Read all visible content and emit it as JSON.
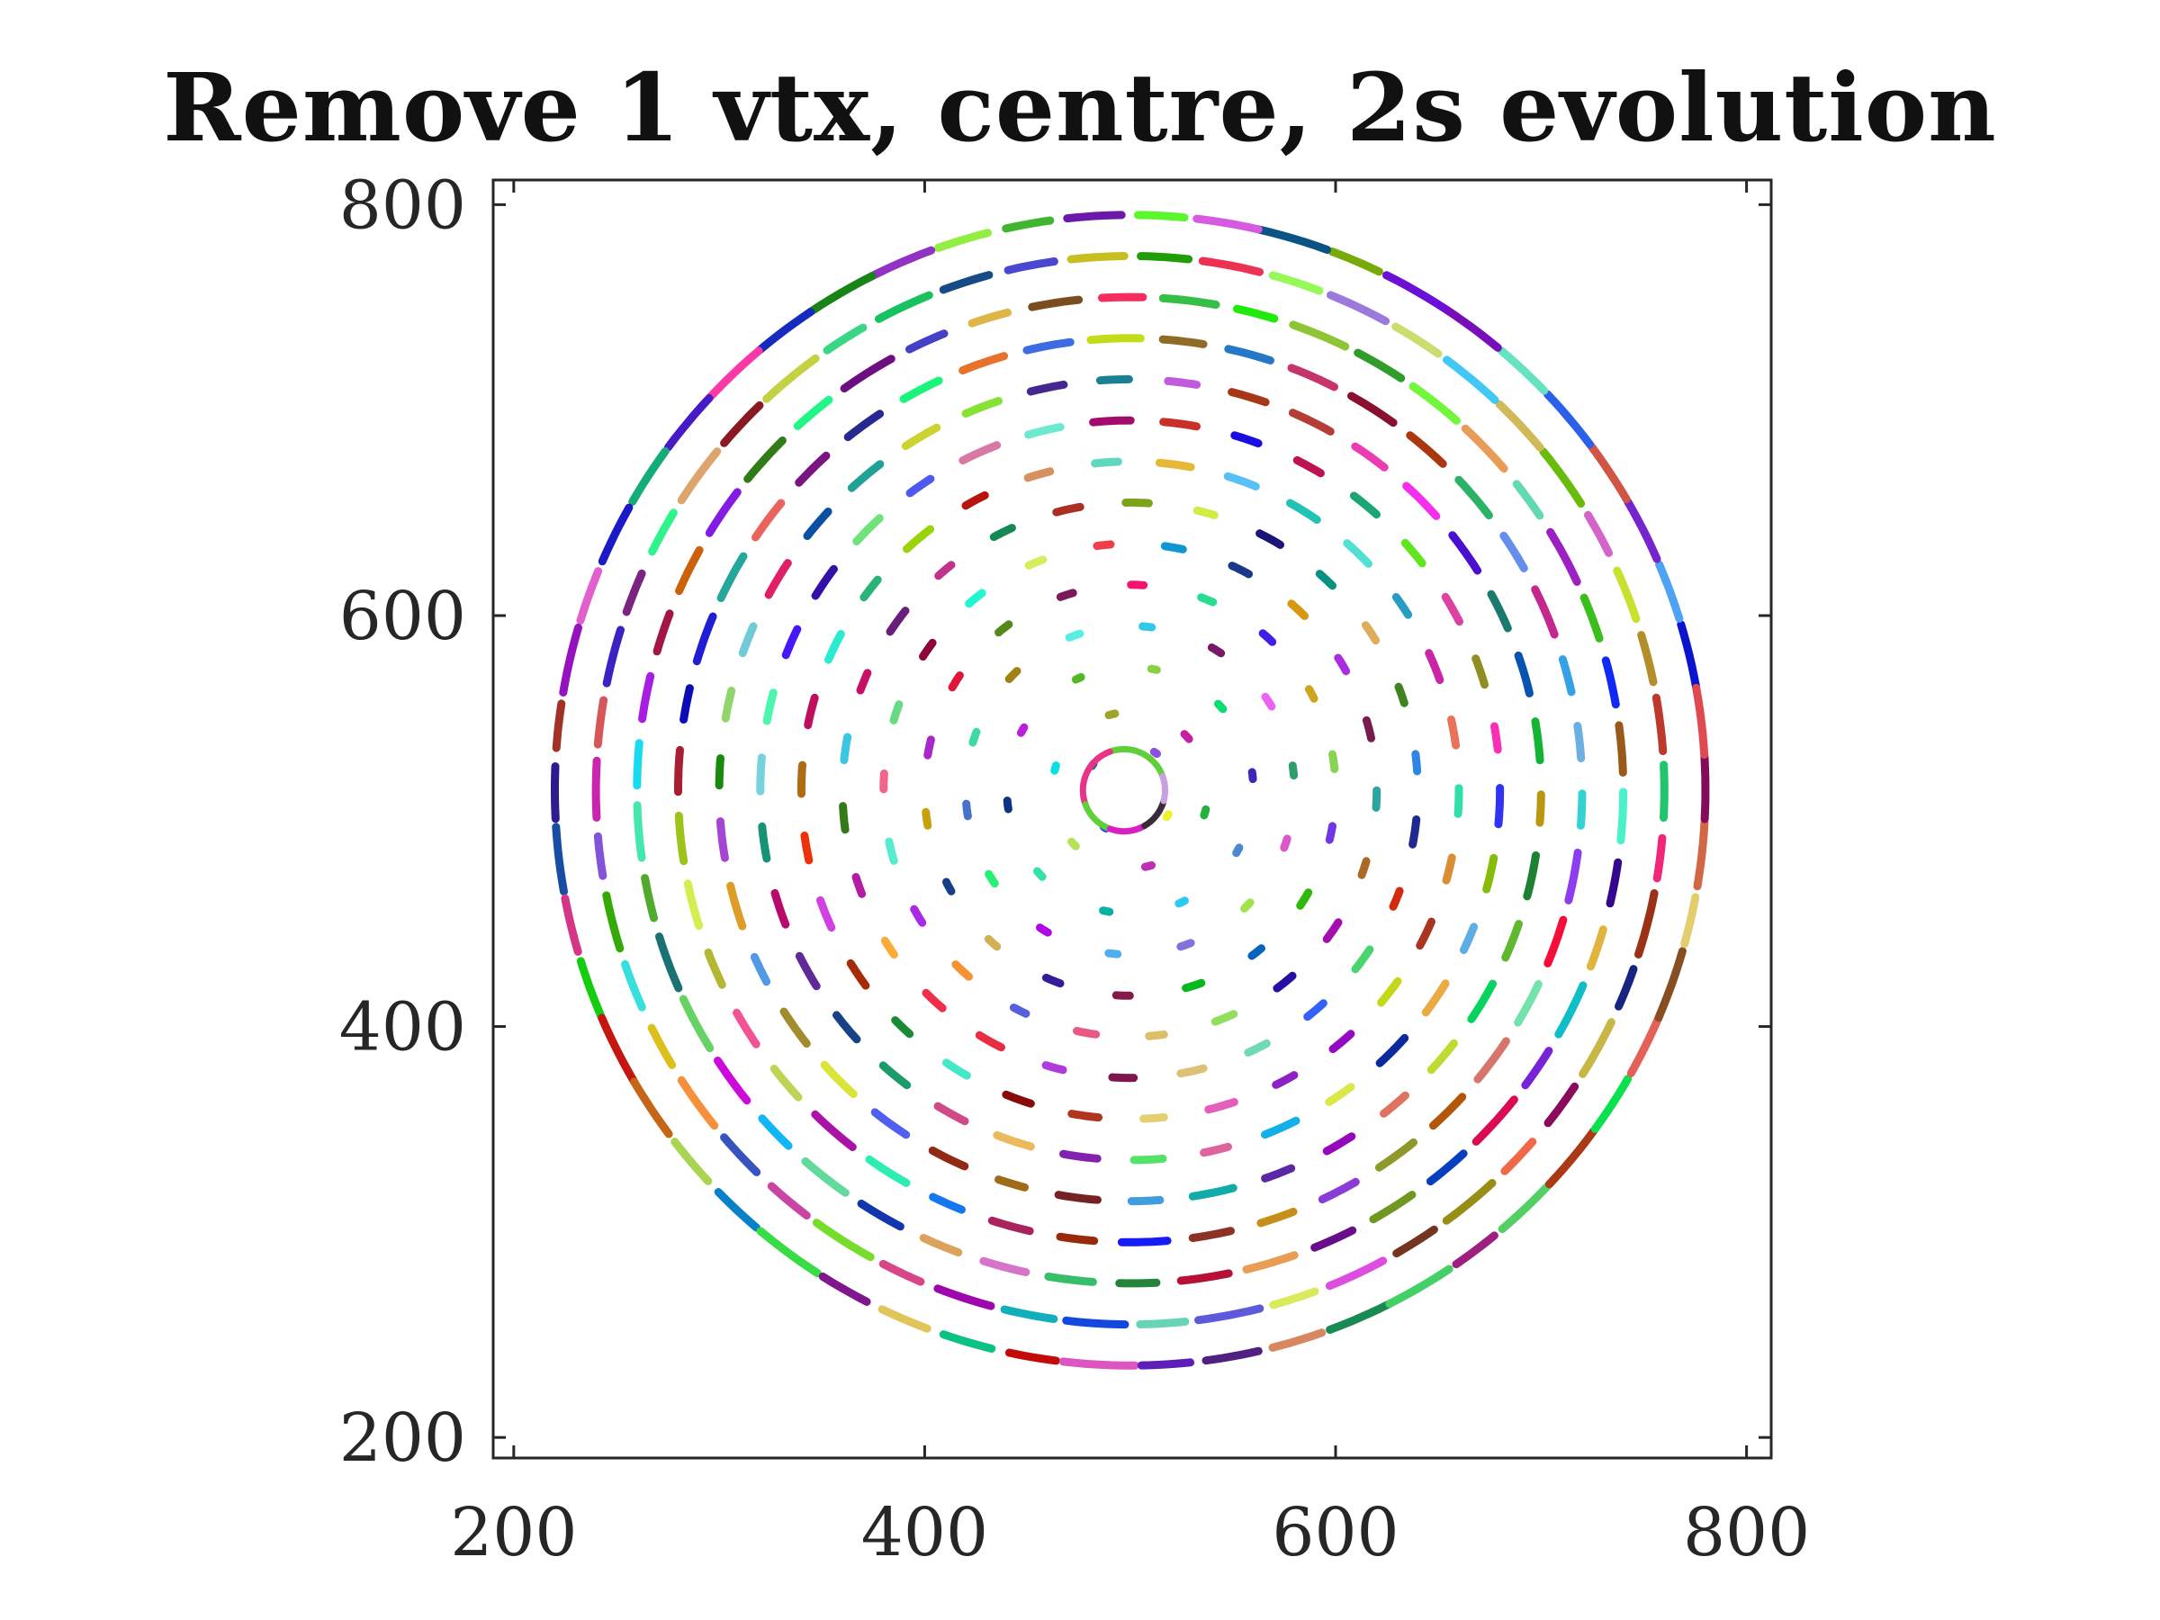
{
  "chart_data": {
    "type": "scatter",
    "title": "Remove 1 vtx, centre, 2s evolution",
    "xlabel": "",
    "ylabel": "",
    "xlim": [
      190,
      812
    ],
    "ylim": [
      190,
      812
    ],
    "xticks": [
      200,
      400,
      600,
      800
    ],
    "yticks": [
      200,
      400,
      600,
      800
    ],
    "grid": false,
    "legend": "none",
    "center": [
      500,
      515
    ],
    "ring_spacing": 20,
    "rings": [
      {
        "radius": 22,
        "points": 4
      },
      {
        "radius": 38,
        "points": 6
      },
      {
        "radius": 60,
        "points": 10
      },
      {
        "radius": 80,
        "points": 14
      },
      {
        "radius": 100,
        "points": 18
      },
      {
        "radius": 120,
        "points": 22
      },
      {
        "radius": 140,
        "points": 26
      },
      {
        "radius": 160,
        "points": 30
      },
      {
        "radius": 180,
        "points": 34
      },
      {
        "radius": 200,
        "points": 38
      },
      {
        "radius": 220,
        "points": 42
      },
      {
        "radius": 240,
        "points": 46
      },
      {
        "radius": 260,
        "points": 50
      },
      {
        "radius": 280,
        "points": 54
      }
    ],
    "central_vortex_loop": {
      "center": [
        497,
        515
      ],
      "radius": 20
    }
  }
}
